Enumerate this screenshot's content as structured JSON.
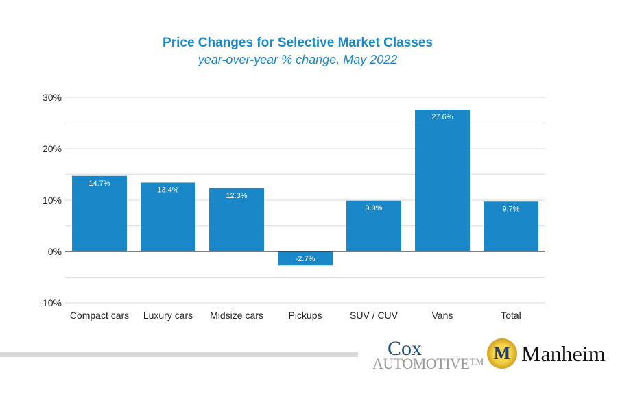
{
  "chart_data": {
    "type": "bar",
    "title": "Price Changes for Selective Market Classes",
    "subtitle": "year-over-year % change, May 2022",
    "categories": [
      "Compact cars",
      "Luxury cars",
      "Midsize cars",
      "Pickups",
      "SUV / CUV",
      "Vans",
      "Total"
    ],
    "values": [
      14.7,
      13.4,
      12.3,
      -2.7,
      9.9,
      27.6,
      9.7
    ],
    "data_labels": [
      "14.7%",
      "13.4%",
      "12.3%",
      "-2.7%",
      "9.9%",
      "27.6%",
      "9.7%"
    ],
    "ylim": [
      -10,
      30
    ],
    "yticks": [
      "30%",
      "20%",
      "10%",
      "0%",
      "-10%"
    ],
    "ytick_values": [
      30,
      20,
      10,
      0,
      -10
    ],
    "grid": true,
    "xlabel": "",
    "ylabel": "",
    "bar_color": "#1a87c8"
  },
  "logos": {
    "cox": "Cox Automotive",
    "cox_line1": "Cox",
    "cox_line2": "AUTOMOTIVE™",
    "manheim": "Manheim",
    "manheim_mark": "M"
  }
}
